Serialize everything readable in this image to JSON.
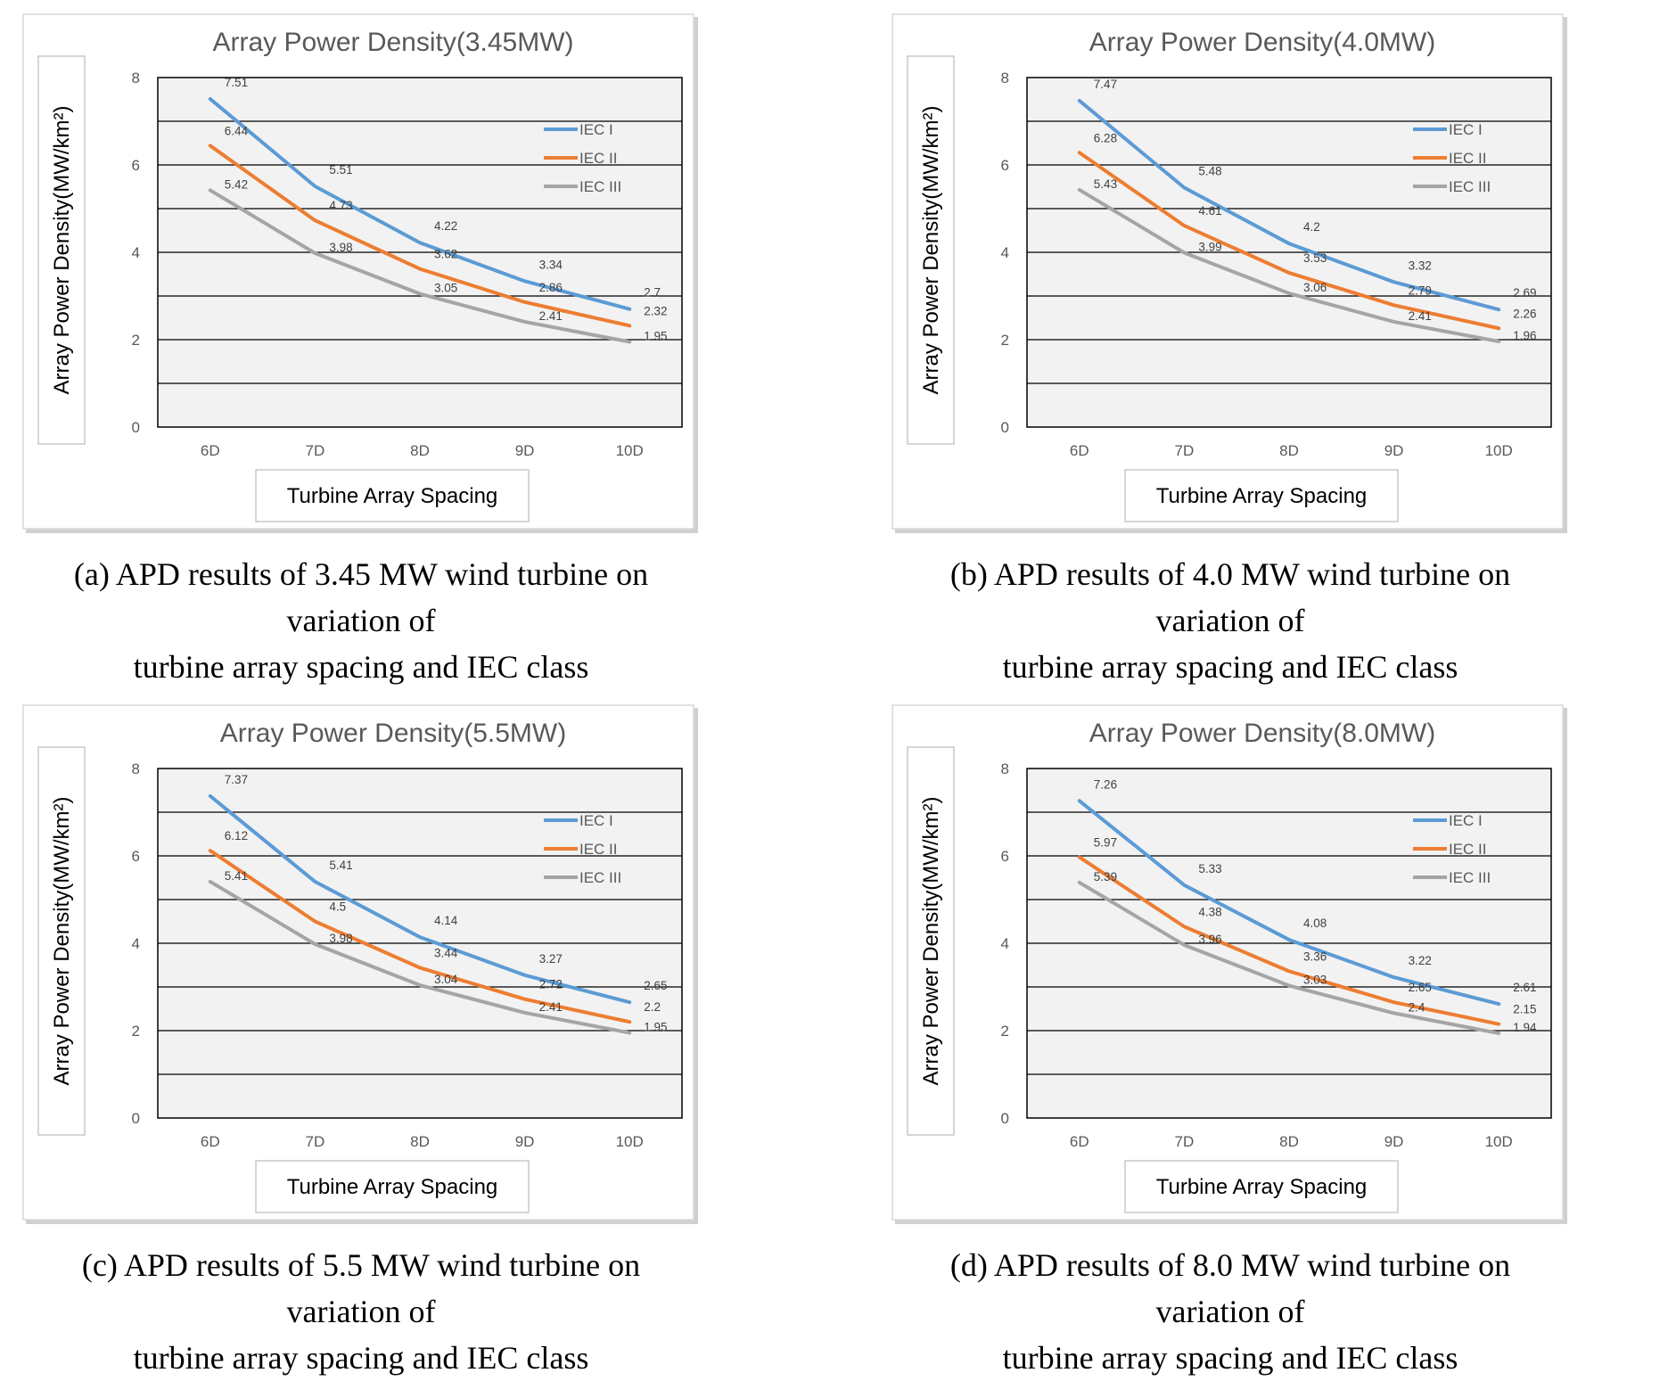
{
  "figure": {
    "panels": [
      {
        "caption_line1": "(a) APD results of 3.45 MW wind turbine on variation of",
        "caption_line2": "turbine array spacing and IEC class"
      },
      {
        "caption_line1": "(b) APD results of 4.0 MW wind turbine on variation of",
        "caption_line2": "turbine array spacing and IEC class"
      },
      {
        "caption_line1": "(c) APD results of 5.5 MW wind turbine on variation of",
        "caption_line2": "turbine array spacing and IEC class"
      },
      {
        "caption_line1": "(d) APD results of 8.0 MW wind turbine on variation of",
        "caption_line2": "turbine array spacing and IEC class"
      }
    ]
  },
  "colors": {
    "iec1": "#5B9BD5",
    "iec2": "#ED7D31",
    "iec3": "#A5A5A5",
    "plot_bg": "#F2F2F2"
  },
  "chart_data": [
    {
      "type": "line",
      "title": "Array Power Density(3.45MW)",
      "xlabel": "Turbine Array Spacing",
      "ylabel": "Array Power Density(MW/km²)",
      "categories": [
        "6D",
        "7D",
        "8D",
        "9D",
        "10D"
      ],
      "ylim": [
        0,
        8
      ],
      "yticks": [
        "0",
        "2",
        "4",
        "6",
        "8"
      ],
      "legend": "right",
      "series": [
        {
          "name": "IEC I",
          "values": [
            7.51,
            5.51,
            4.22,
            3.34,
            2.7
          ]
        },
        {
          "name": "IEC II",
          "values": [
            6.44,
            4.73,
            3.62,
            2.86,
            2.32
          ]
        },
        {
          "name": "IEC III",
          "values": [
            5.42,
            3.98,
            3.05,
            2.41,
            1.95
          ]
        }
      ]
    },
    {
      "type": "line",
      "title": "Array Power Density(4.0MW)",
      "xlabel": "Turbine Array Spacing",
      "ylabel": "Array Power Density(MW/km²)",
      "categories": [
        "6D",
        "7D",
        "8D",
        "9D",
        "10D"
      ],
      "ylim": [
        0,
        8
      ],
      "yticks": [
        "0",
        "2",
        "4",
        "6",
        "8"
      ],
      "legend": "right",
      "series": [
        {
          "name": "IEC I",
          "values": [
            7.47,
            5.48,
            4.2,
            3.32,
            2.69
          ]
        },
        {
          "name": "IEC II",
          "values": [
            6.28,
            4.61,
            3.53,
            2.79,
            2.26
          ]
        },
        {
          "name": "IEC III",
          "values": [
            5.43,
            3.99,
            3.06,
            2.41,
            1.96
          ]
        }
      ]
    },
    {
      "type": "line",
      "title": "Array Power Density(5.5MW)",
      "xlabel": "Turbine Array Spacing",
      "ylabel": "Array Power Density(MW/km²)",
      "categories": [
        "6D",
        "7D",
        "8D",
        "9D",
        "10D"
      ],
      "ylim": [
        0,
        8
      ],
      "yticks": [
        "0",
        "2",
        "4",
        "6",
        "8"
      ],
      "legend": "right",
      "series": [
        {
          "name": "IEC I",
          "values": [
            7.37,
            5.41,
            4.14,
            3.27,
            2.65
          ]
        },
        {
          "name": "IEC II",
          "values": [
            6.12,
            4.5,
            3.44,
            2.72,
            2.2
          ]
        },
        {
          "name": "IEC III",
          "values": [
            5.41,
            3.98,
            3.04,
            2.41,
            1.95
          ]
        }
      ]
    },
    {
      "type": "line",
      "title": "Array Power Density(8.0MW)",
      "xlabel": "Turbine Array Spacing",
      "ylabel": "Array Power Density(MW/km²)",
      "categories": [
        "6D",
        "7D",
        "8D",
        "9D",
        "10D"
      ],
      "ylim": [
        0,
        8
      ],
      "yticks": [
        "0",
        "2",
        "4",
        "6",
        "8"
      ],
      "legend": "right",
      "series": [
        {
          "name": "IEC I",
          "values": [
            7.26,
            5.33,
            4.08,
            3.22,
            2.61
          ]
        },
        {
          "name": "IEC II",
          "values": [
            5.97,
            4.38,
            3.36,
            2.65,
            2.15
          ]
        },
        {
          "name": "IEC III",
          "values": [
            5.39,
            3.96,
            3.03,
            2.4,
            1.94
          ]
        }
      ]
    }
  ]
}
